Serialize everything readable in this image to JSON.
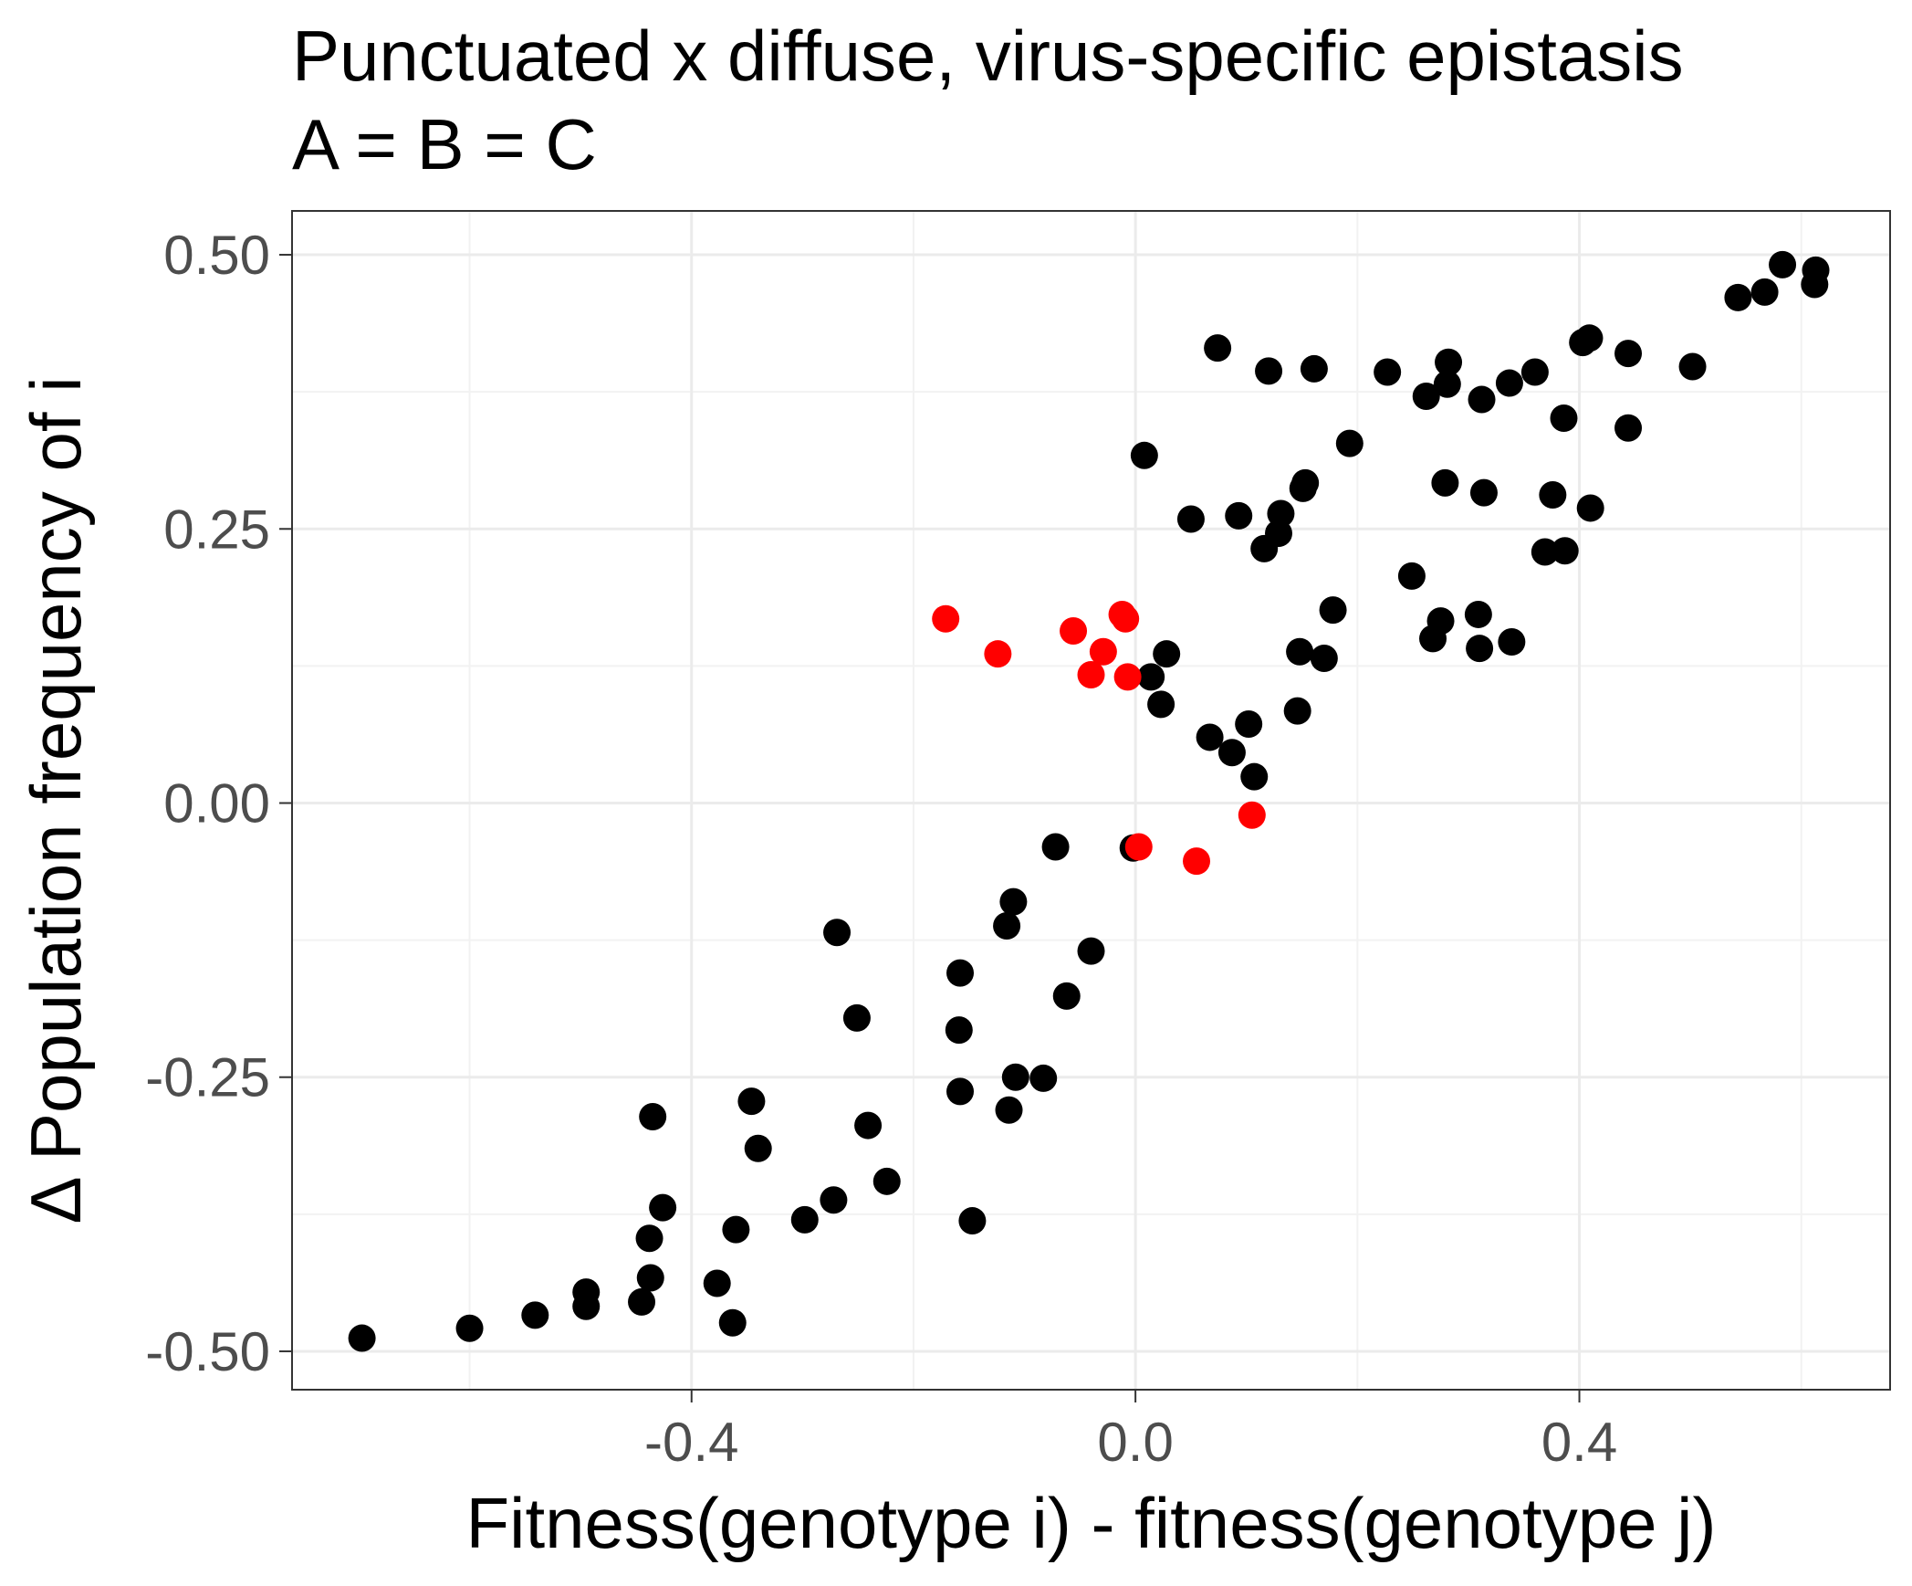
{
  "chart_data": {
    "type": "scatter",
    "title_lines": [
      "Punctuated x diffuse, virus-specific epistasis",
      "A = B = C"
    ],
    "xlabel": "Fitness(genotype i) - fitness(genotype j)",
    "ylabel": "Δ Population frequency of i",
    "xlim": [
      -0.76,
      0.68
    ],
    "ylim": [
      -0.535,
      0.54
    ],
    "x_ticks": [
      {
        "value": -0.4,
        "label": "-0.4"
      },
      {
        "value": 0.0,
        "label": "0.0"
      },
      {
        "value": 0.4,
        "label": "0.4"
      }
    ],
    "x_minor_ticks": [
      -0.6,
      -0.2,
      0.2,
      0.6
    ],
    "y_ticks": [
      {
        "value": 0.5,
        "label": "0.50"
      },
      {
        "value": 0.25,
        "label": "0.25"
      },
      {
        "value": 0.0,
        "label": "0.00"
      },
      {
        "value": -0.25,
        "label": "-0.25"
      },
      {
        "value": -0.5,
        "label": "-0.50"
      }
    ],
    "y_minor_ticks": [
      0.375,
      0.125,
      -0.125,
      -0.375
    ],
    "grid": true,
    "series": [
      {
        "color": "#000000",
        "points": [
          [
            -0.697,
            -0.488
          ],
          [
            -0.6,
            -0.479
          ],
          [
            -0.541,
            -0.467
          ],
          [
            -0.495,
            -0.446
          ],
          [
            -0.495,
            -0.459
          ],
          [
            -0.445,
            -0.455
          ],
          [
            -0.437,
            -0.433
          ],
          [
            -0.438,
            -0.397
          ],
          [
            -0.426,
            -0.369
          ],
          [
            -0.435,
            -0.286
          ],
          [
            -0.363,
            -0.474
          ],
          [
            -0.377,
            -0.438
          ],
          [
            -0.36,
            -0.389
          ],
          [
            -0.346,
            -0.272
          ],
          [
            -0.34,
            -0.315
          ],
          [
            -0.298,
            -0.38
          ],
          [
            -0.272,
            -0.362
          ],
          [
            -0.224,
            -0.345
          ],
          [
            -0.241,
            -0.294
          ],
          [
            -0.251,
            -0.196
          ],
          [
            -0.269,
            -0.118
          ],
          [
            -0.147,
            -0.381
          ],
          [
            -0.158,
            -0.263
          ],
          [
            -0.159,
            -0.207
          ],
          [
            -0.158,
            -0.155
          ],
          [
            -0.114,
            -0.28
          ],
          [
            -0.108,
            -0.25
          ],
          [
            -0.083,
            -0.251
          ],
          [
            -0.062,
            -0.176
          ],
          [
            -0.04,
            -0.135
          ],
          [
            -0.116,
            -0.112
          ],
          [
            -0.11,
            -0.09
          ],
          [
            -0.072,
            -0.04
          ],
          [
            -0.002,
            -0.041
          ],
          [
            0.008,
            0.317
          ],
          [
            0.014,
            0.115
          ],
          [
            0.023,
            0.09
          ],
          [
            0.028,
            0.136
          ],
          [
            0.05,
            0.259
          ],
          [
            0.067,
            0.06
          ],
          [
            0.074,
            0.415
          ],
          [
            0.087,
            0.046
          ],
          [
            0.093,
            0.262
          ],
          [
            0.102,
            0.072
          ],
          [
            0.107,
            0.024
          ],
          [
            0.116,
            0.232
          ],
          [
            0.12,
            0.394
          ],
          [
            0.129,
            0.246
          ],
          [
            0.131,
            0.264
          ],
          [
            0.146,
            0.084
          ],
          [
            0.148,
            0.138
          ],
          [
            0.151,
            0.287
          ],
          [
            0.153,
            0.292
          ],
          [
            0.161,
            0.396
          ],
          [
            0.17,
            0.132
          ],
          [
            0.178,
            0.176
          ],
          [
            0.193,
            0.328
          ],
          [
            0.227,
            0.393
          ],
          [
            0.249,
            0.207
          ],
          [
            0.262,
            0.371
          ],
          [
            0.268,
            0.15
          ],
          [
            0.275,
            0.166
          ],
          [
            0.279,
            0.292
          ],
          [
            0.281,
            0.382
          ],
          [
            0.282,
            0.402
          ],
          [
            0.312,
            0.368
          ],
          [
            0.309,
            0.172
          ],
          [
            0.31,
            0.141
          ],
          [
            0.314,
            0.283
          ],
          [
            0.337,
            0.383
          ],
          [
            0.339,
            0.147
          ],
          [
            0.36,
            0.393
          ],
          [
            0.369,
            0.229
          ],
          [
            0.376,
            0.281
          ],
          [
            0.386,
            0.351
          ],
          [
            0.387,
            0.23
          ],
          [
            0.403,
            0.42
          ],
          [
            0.409,
            0.424
          ],
          [
            0.41,
            0.269
          ],
          [
            0.444,
            0.41
          ],
          [
            0.444,
            0.342
          ],
          [
            0.502,
            0.398
          ],
          [
            0.543,
            0.461
          ],
          [
            0.567,
            0.466
          ],
          [
            0.583,
            0.491
          ],
          [
            0.612,
            0.473
          ],
          [
            0.613,
            0.486
          ]
        ]
      },
      {
        "color": "#ff0000",
        "points": [
          [
            -0.171,
            0.168
          ],
          [
            -0.124,
            0.136
          ],
          [
            -0.056,
            0.157
          ],
          [
            -0.04,
            0.117
          ],
          [
            -0.029,
            0.138
          ],
          [
            -0.012,
            0.172
          ],
          [
            -0.009,
            0.168
          ],
          [
            -0.007,
            0.115
          ],
          [
            0.003,
            -0.04
          ],
          [
            0.055,
            -0.053
          ],
          [
            0.105,
            -0.011
          ]
        ]
      }
    ]
  }
}
